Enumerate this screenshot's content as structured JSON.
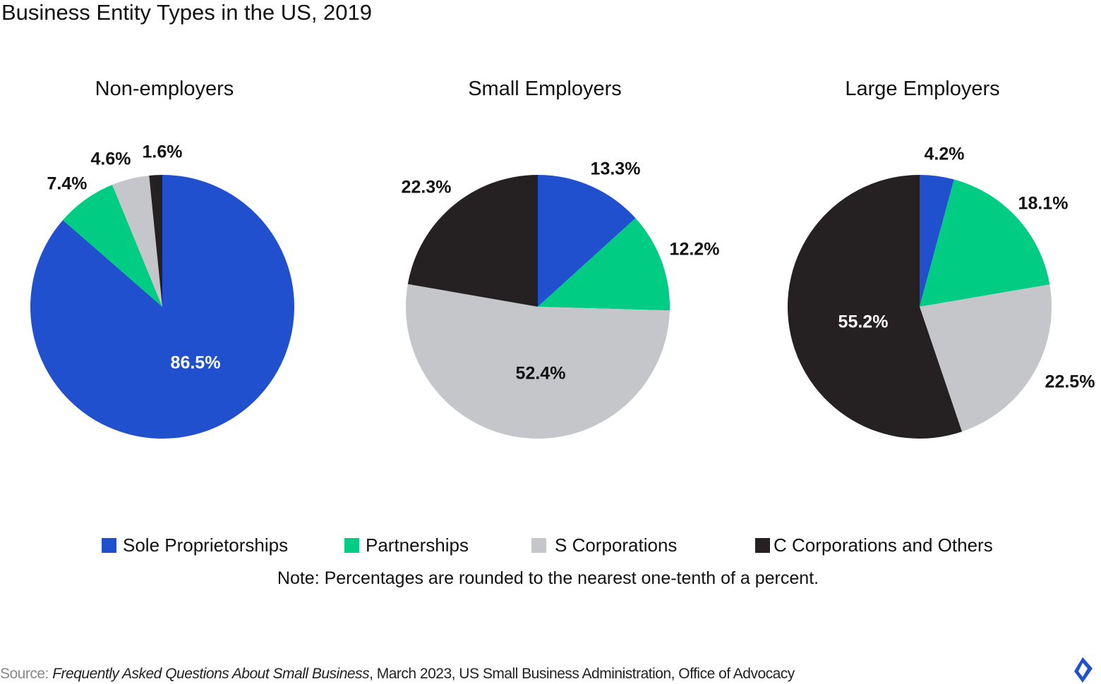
{
  "title": "Business Entity Types in the US, 2019",
  "colors": {
    "Sole Proprietorships": "#2150CF",
    "Partnerships": "#00CC83",
    "S Corporations": "#C4C6CA",
    "C Corporations and Others": "#252122"
  },
  "chart_data": [
    {
      "type": "pie",
      "title": "Non-employers",
      "categories": [
        "Sole Proprietorships",
        "Partnerships",
        "S Corporations",
        "C Corporations and Others"
      ],
      "values": [
        86.5,
        7.4,
        4.6,
        1.6
      ],
      "labels": [
        "86.5%",
        "7.4%",
        "4.6%",
        "1.6%"
      ]
    },
    {
      "type": "pie",
      "title": "Small Employers",
      "categories": [
        "Sole Proprietorships",
        "Partnerships",
        "S Corporations",
        "C Corporations and Others"
      ],
      "values": [
        13.3,
        12.2,
        52.4,
        22.3
      ],
      "labels": [
        "13.3%",
        "12.2%",
        "52.4%",
        "22.3%"
      ]
    },
    {
      "type": "pie",
      "title": "Large Employers",
      "categories": [
        "Sole Proprietorships",
        "Partnerships",
        "S Corporations",
        "C Corporations and Others"
      ],
      "values": [
        4.2,
        18.1,
        22.5,
        55.2
      ],
      "labels": [
        "4.2%",
        "18.1%",
        "22.5%",
        "55.2%"
      ]
    }
  ],
  "legend": [
    "Sole Proprietorships",
    "Partnerships",
    "S Corporations",
    "C Corporations and Others"
  ],
  "legend_position": "bottom",
  "note": "Note: Percentages are rounded to the nearest one-tenth of a percent.",
  "source": {
    "prefix": "Source: ",
    "title": "Frequently Asked Questions About Small Business",
    "rest": ", March 2023, US Small Business Administration, Office of Advocacy"
  },
  "logo_icon": "toptal-logo-icon"
}
